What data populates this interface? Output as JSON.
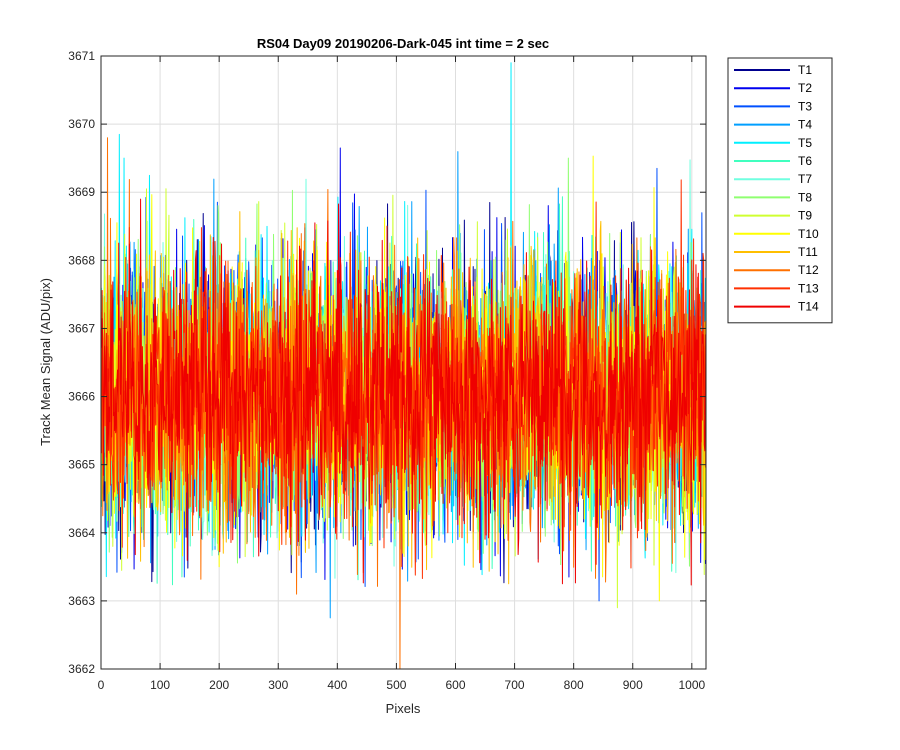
{
  "chart_data": {
    "type": "line",
    "title": "RS04 Day09 20190206-Dark-045 int time = 2 sec",
    "xlabel": "Pixels",
    "ylabel": "Track Mean Signal (ADU/pix)",
    "xlim": [
      0,
      1024
    ],
    "ylim": [
      3662,
      3671
    ],
    "xticks": [
      "0",
      "100",
      "200",
      "300",
      "400",
      "500",
      "600",
      "700",
      "800",
      "900",
      "1000"
    ],
    "yticks": [
      "3662",
      "3663",
      "3664",
      "3665",
      "3666",
      "3667",
      "3668",
      "3669",
      "3670",
      "3671"
    ],
    "grid": true,
    "legend_position": "outside-top-right",
    "num_points": 1024,
    "noise_model": {
      "mean": 3666,
      "std": 0.95,
      "min": 3663.2,
      "max": 3669.6
    },
    "series": [
      {
        "name": "T1",
        "color": "#00008f"
      },
      {
        "name": "T2",
        "color": "#0000ef"
      },
      {
        "name": "T3",
        "color": "#0050ff"
      },
      {
        "name": "T4",
        "color": "#009fff"
      },
      {
        "name": "T5",
        "color": "#00efff"
      },
      {
        "name": "T6",
        "color": "#40ffbf"
      },
      {
        "name": "T7",
        "color": "#70ffe0"
      },
      {
        "name": "T8",
        "color": "#8fff70"
      },
      {
        "name": "T9",
        "color": "#cfff30"
      },
      {
        "name": "T10",
        "color": "#ffff00"
      },
      {
        "name": "T11",
        "color": "#ffbf00"
      },
      {
        "name": "T12",
        "color": "#ff7000"
      },
      {
        "name": "T13",
        "color": "#ff3000"
      },
      {
        "name": "T14",
        "color": "#ef0000"
      }
    ],
    "outliers": [
      {
        "series": "T5",
        "x": 693,
        "y": 3670.9
      },
      {
        "series": "T12",
        "x": 505,
        "y": 3662.0
      },
      {
        "series": "T5",
        "x": 30,
        "y": 3669.85
      },
      {
        "series": "T12",
        "x": 10,
        "y": 3669.8
      },
      {
        "series": "T2",
        "x": 404,
        "y": 3669.65
      },
      {
        "series": "T4",
        "x": 387,
        "y": 3662.75
      },
      {
        "series": "T12",
        "x": 330,
        "y": 3663.1
      },
      {
        "series": "T9",
        "x": 873,
        "y": 3662.9
      },
      {
        "series": "T10",
        "x": 944,
        "y": 3663.0
      },
      {
        "series": "T3",
        "x": 940,
        "y": 3669.35
      },
      {
        "series": "T5",
        "x": 38,
        "y": 3669.5
      },
      {
        "series": "T3",
        "x": 140,
        "y": 3663.35
      },
      {
        "series": "T8",
        "x": 790,
        "y": 3669.5
      },
      {
        "series": "T3",
        "x": 842,
        "y": 3663.0
      }
    ]
  }
}
